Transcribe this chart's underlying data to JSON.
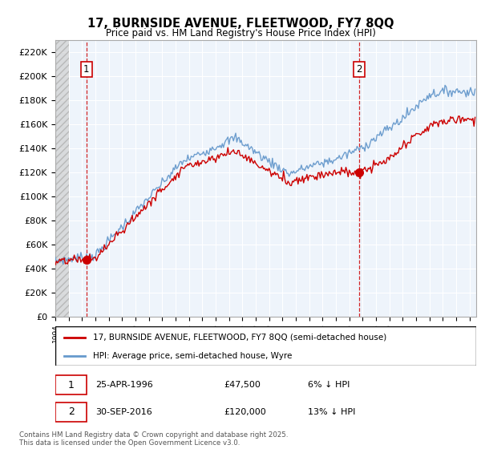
{
  "title": "17, BURNSIDE AVENUE, FLEETWOOD, FY7 8QQ",
  "subtitle": "Price paid vs. HM Land Registry's House Price Index (HPI)",
  "ylim": [
    0,
    230000
  ],
  "yticks": [
    0,
    20000,
    40000,
    60000,
    80000,
    100000,
    120000,
    140000,
    160000,
    180000,
    200000,
    220000
  ],
  "xlim_start": 1994.0,
  "xlim_end": 2025.5,
  "sale1_date": 1996.32,
  "sale1_price": 47500,
  "sale2_date": 2016.75,
  "sale2_price": 120000,
  "red_color": "#cc0000",
  "blue_color": "#6699cc",
  "legend_red_label": "17, BURNSIDE AVENUE, FLEETWOOD, FY7 8QQ (semi-detached house)",
  "legend_blue_label": "HPI: Average price, semi-detached house, Wyre",
  "box1_date": "25-APR-1996",
  "box1_price": "£47,500",
  "box1_pct": "6% ↓ HPI",
  "box2_date": "30-SEP-2016",
  "box2_price": "£120,000",
  "box2_pct": "13% ↓ HPI",
  "footnote": "Contains HM Land Registry data © Crown copyright and database right 2025.\nThis data is licensed under the Open Government Licence v3.0."
}
